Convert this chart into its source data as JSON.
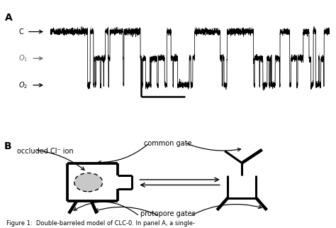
{
  "fig_width": 4.74,
  "fig_height": 3.21,
  "dpi": 100,
  "bg_color": "#ffffff",
  "panel_A_label": "A",
  "panel_B_label": "B",
  "common_gate_label": "common gate",
  "protopore_gates_label": "protopore gates",
  "occluded_Cl_label": "occluded Cl⁻ ion",
  "figure_caption": "Figure 1:  Double-barreled model of CLC-0. In panel A, a single-",
  "trace_color_black": "#000000",
  "trace_color_gray": "#999999"
}
